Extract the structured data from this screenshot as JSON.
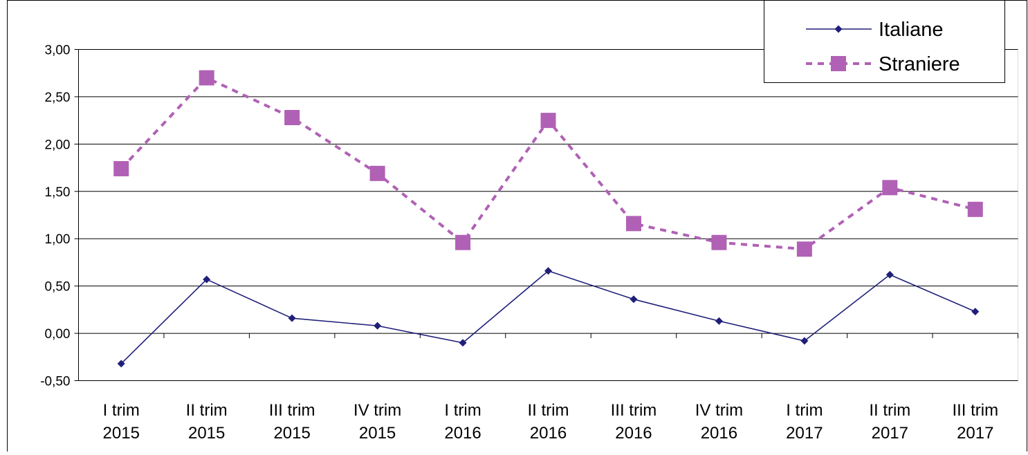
{
  "chart_data": {
    "type": "line",
    "categories": [
      "I trim 2015",
      "II trim 2015",
      "III trim 2015",
      "IV trim 2015",
      "I trim 2016",
      "II trim 2016",
      "III trim 2016",
      "IV trim 2016",
      "I trim 2017",
      "II trim 2017",
      "III trim 2017"
    ],
    "category_lines": [
      [
        "I trim",
        "2015"
      ],
      [
        "II trim",
        "2015"
      ],
      [
        "III trim",
        "2015"
      ],
      [
        "IV trim",
        "2015"
      ],
      [
        "I trim",
        "2016"
      ],
      [
        "II trim",
        "2016"
      ],
      [
        "III trim",
        "2016"
      ],
      [
        "IV trim",
        "2016"
      ],
      [
        "I trim",
        "2017"
      ],
      [
        "II trim",
        "2017"
      ],
      [
        "III trim",
        "2017"
      ]
    ],
    "series": [
      {
        "name": "Italiane",
        "values": [
          -0.32,
          0.57,
          0.16,
          0.08,
          -0.1,
          0.66,
          0.36,
          0.13,
          -0.08,
          0.62,
          0.23
        ],
        "color": "#1f1f7a",
        "marker": "diamond",
        "line_style": "solid"
      },
      {
        "name": "Straniere",
        "values": [
          1.74,
          2.7,
          2.28,
          1.69,
          0.96,
          2.25,
          1.16,
          0.96,
          0.89,
          1.54,
          1.31
        ],
        "color": "#b061b5",
        "marker": "square",
        "line_style": "dashed"
      }
    ],
    "ylim": [
      -0.5,
      3.0
    ],
    "y_ticks": [
      3.0,
      2.5,
      2.0,
      1.5,
      1.0,
      0.5,
      0.0,
      -0.5
    ],
    "y_tick_labels": [
      "3,00",
      "2,50",
      "2,00",
      "1,50",
      "1,00",
      "0,50",
      "0,00",
      "-0,50"
    ],
    "grid": true,
    "legend_position": "top-right"
  }
}
